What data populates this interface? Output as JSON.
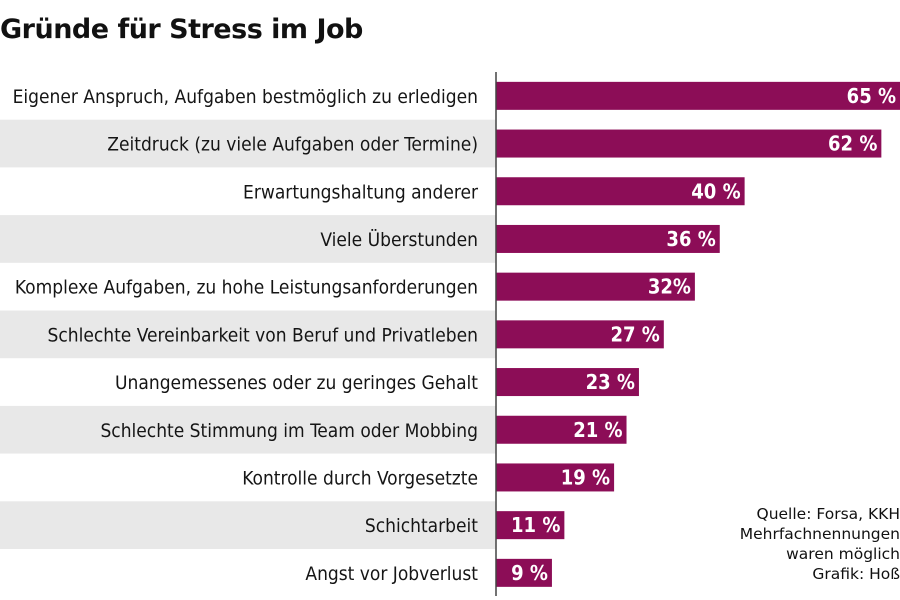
{
  "chart_data": {
    "type": "bar",
    "orientation": "horizontal",
    "title": "Gründe für Stress im Job",
    "categories": [
      "Eigener Anspruch, Aufgaben bestmöglich zu erledigen",
      "Zeitdruck (zu viele Aufgaben oder Termine)",
      "Erwartungshaltung anderer",
      "Viele Überstunden",
      "Komplexe Aufgaben, zu hohe Leistungsanforderungen",
      "Schlechte Vereinbarkeit von Beruf und Privatleben",
      "Unangemessenes oder zu geringes Gehalt",
      "Schlechte Stimmung im Team oder Mobbing",
      "Kontrolle durch Vorgesetzte",
      "Schichtarbeit",
      "Angst vor Jobverlust"
    ],
    "values": [
      65,
      62,
      40,
      36,
      32,
      27,
      23,
      21,
      19,
      11,
      9
    ],
    "value_labels": [
      "65 %",
      "62 %",
      "40 %",
      "36 %",
      "32%",
      "27 %",
      "23 %",
      "21 %",
      "19 %",
      "11 %",
      "9 %"
    ],
    "xlim": [
      0,
      65
    ],
    "grid": false,
    "colors": {
      "bar": "#8c0d57",
      "row_stripe": "#e8e8e8",
      "axis": "#444444"
    }
  },
  "footer": {
    "lines": [
      "Quelle: Forsa, KKH",
      "Mehrfachnennungen",
      "waren möglich",
      "Grafik: Hoß"
    ]
  }
}
